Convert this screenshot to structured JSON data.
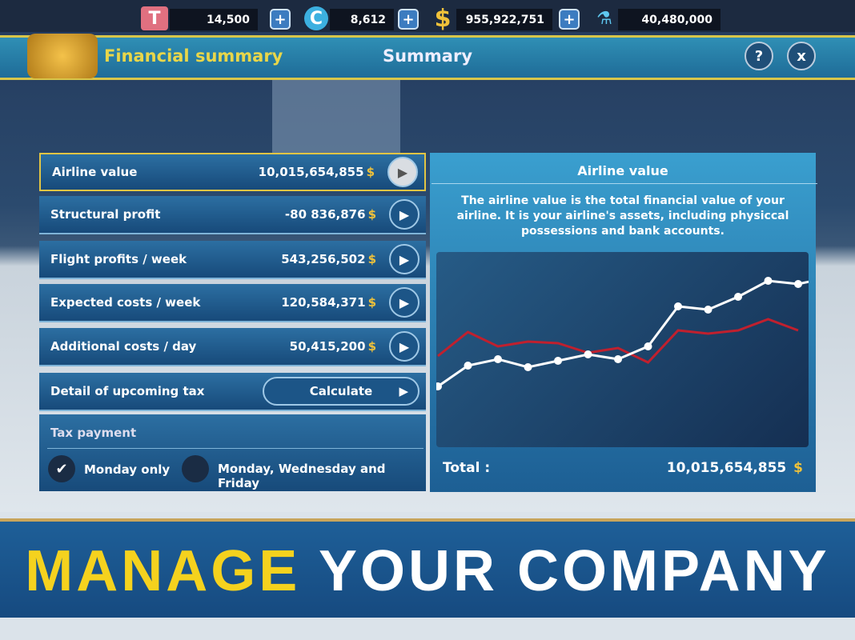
{
  "resources": [
    {
      "icon": "ticket-icon",
      "value": "14,500"
    },
    {
      "icon": "coin-c-icon",
      "value": "8,612"
    },
    {
      "icon": "dollar-icon",
      "value": "955,922,751"
    },
    {
      "icon": "flask-icon",
      "value": "40,480,000"
    }
  ],
  "header": {
    "title": "Financial summary",
    "subtitle": "Summary",
    "help": "?",
    "close": "x"
  },
  "rows": [
    {
      "label": "Airline value",
      "value": "10,015,654,855"
    },
    {
      "label": "Structural profit",
      "value": "-80 836,876"
    },
    {
      "label": "Flight profits / week",
      "value": "543,256,502"
    },
    {
      "label": "Expected costs / week",
      "value": "120,584,371"
    },
    {
      "label": "Additional costs / day",
      "value": "50,415,200"
    }
  ],
  "currency": "$",
  "tax_detail": {
    "label": "Detail of upcoming tax",
    "button": "Calculate"
  },
  "tax_payment": {
    "label": "Tax payment",
    "options": [
      {
        "label": "Monday only",
        "checked": true
      },
      {
        "label": "Monday, Wednesday and Friday",
        "checked": false
      }
    ]
  },
  "panel": {
    "title": "Airline value",
    "description": "The airline value is the total financial value of your airline. It is your airline's assets, including physiccal possessions and bank accounts.",
    "total_label": "Total :",
    "total_value": "10,015,654,855"
  },
  "chart_data": {
    "type": "line",
    "grid": false,
    "series": [
      {
        "color": "#ffffff",
        "values": [
          38,
          51,
          55,
          50,
          54,
          58,
          55,
          63,
          88,
          86,
          94,
          104,
          102,
          106
        ]
      },
      {
        "color": "#c0202e",
        "values": [
          57,
          72,
          63,
          66,
          65,
          59,
          62,
          53,
          73,
          71,
          73,
          80,
          73
        ]
      }
    ]
  },
  "banner": {
    "word1": "MANAGE",
    "word2": "YOUR COMPANY",
    "accent": "#f5d21e"
  }
}
